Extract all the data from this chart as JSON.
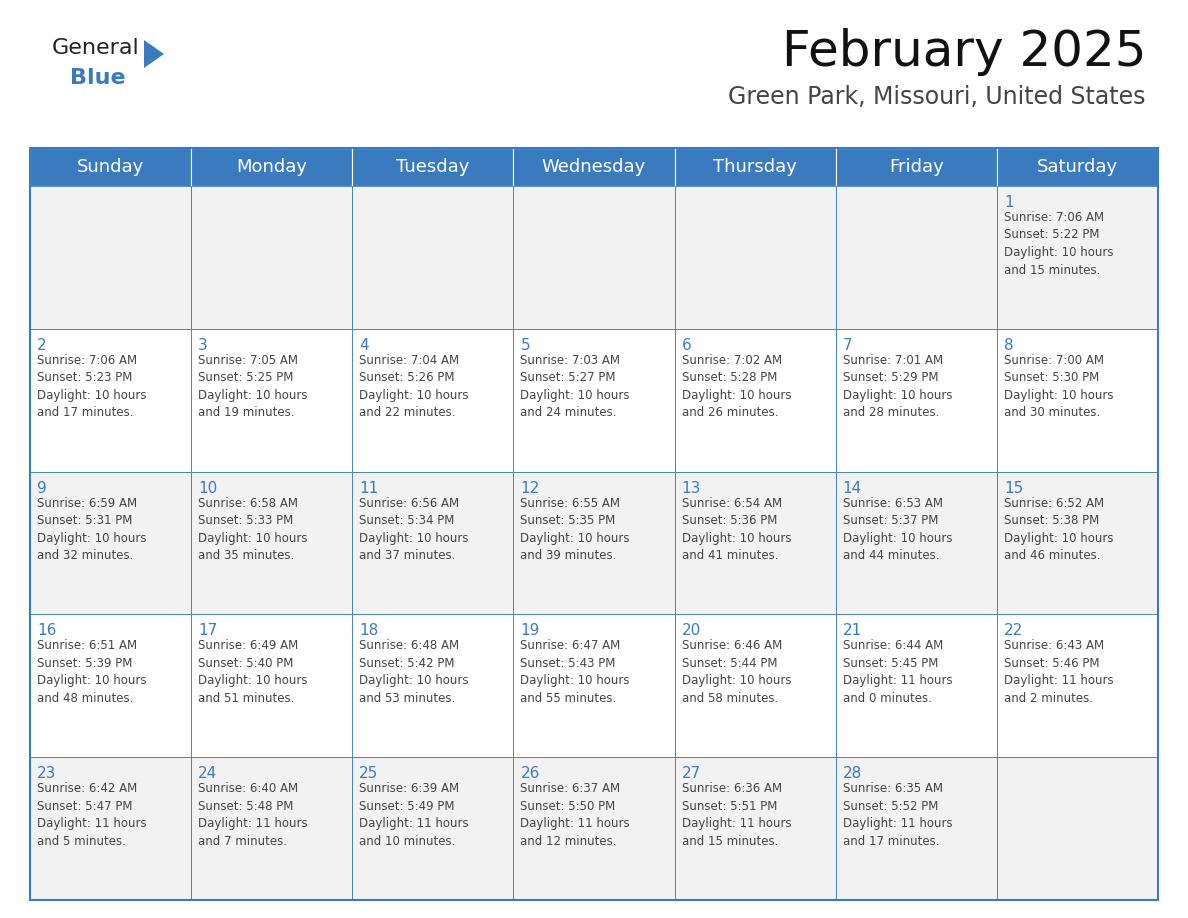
{
  "title": "February 2025",
  "subtitle": "Green Park, Missouri, United States",
  "header_color": "#3a7bbf",
  "header_text_color": "#ffffff",
  "cell_bg_even": "#f2f2f2",
  "cell_bg_odd": "#ffffff",
  "border_color": "#3a7bbf",
  "text_color": "#444444",
  "day_number_color": "#3a7bbf",
  "day_headers": [
    "Sunday",
    "Monday",
    "Tuesday",
    "Wednesday",
    "Thursday",
    "Friday",
    "Saturday"
  ],
  "weeks": [
    [
      {
        "day": "",
        "info": ""
      },
      {
        "day": "",
        "info": ""
      },
      {
        "day": "",
        "info": ""
      },
      {
        "day": "",
        "info": ""
      },
      {
        "day": "",
        "info": ""
      },
      {
        "day": "",
        "info": ""
      },
      {
        "day": "1",
        "info": "Sunrise: 7:06 AM\nSunset: 5:22 PM\nDaylight: 10 hours\nand 15 minutes."
      }
    ],
    [
      {
        "day": "2",
        "info": "Sunrise: 7:06 AM\nSunset: 5:23 PM\nDaylight: 10 hours\nand 17 minutes."
      },
      {
        "day": "3",
        "info": "Sunrise: 7:05 AM\nSunset: 5:25 PM\nDaylight: 10 hours\nand 19 minutes."
      },
      {
        "day": "4",
        "info": "Sunrise: 7:04 AM\nSunset: 5:26 PM\nDaylight: 10 hours\nand 22 minutes."
      },
      {
        "day": "5",
        "info": "Sunrise: 7:03 AM\nSunset: 5:27 PM\nDaylight: 10 hours\nand 24 minutes."
      },
      {
        "day": "6",
        "info": "Sunrise: 7:02 AM\nSunset: 5:28 PM\nDaylight: 10 hours\nand 26 minutes."
      },
      {
        "day": "7",
        "info": "Sunrise: 7:01 AM\nSunset: 5:29 PM\nDaylight: 10 hours\nand 28 minutes."
      },
      {
        "day": "8",
        "info": "Sunrise: 7:00 AM\nSunset: 5:30 PM\nDaylight: 10 hours\nand 30 minutes."
      }
    ],
    [
      {
        "day": "9",
        "info": "Sunrise: 6:59 AM\nSunset: 5:31 PM\nDaylight: 10 hours\nand 32 minutes."
      },
      {
        "day": "10",
        "info": "Sunrise: 6:58 AM\nSunset: 5:33 PM\nDaylight: 10 hours\nand 35 minutes."
      },
      {
        "day": "11",
        "info": "Sunrise: 6:56 AM\nSunset: 5:34 PM\nDaylight: 10 hours\nand 37 minutes."
      },
      {
        "day": "12",
        "info": "Sunrise: 6:55 AM\nSunset: 5:35 PM\nDaylight: 10 hours\nand 39 minutes."
      },
      {
        "day": "13",
        "info": "Sunrise: 6:54 AM\nSunset: 5:36 PM\nDaylight: 10 hours\nand 41 minutes."
      },
      {
        "day": "14",
        "info": "Sunrise: 6:53 AM\nSunset: 5:37 PM\nDaylight: 10 hours\nand 44 minutes."
      },
      {
        "day": "15",
        "info": "Sunrise: 6:52 AM\nSunset: 5:38 PM\nDaylight: 10 hours\nand 46 minutes."
      }
    ],
    [
      {
        "day": "16",
        "info": "Sunrise: 6:51 AM\nSunset: 5:39 PM\nDaylight: 10 hours\nand 48 minutes."
      },
      {
        "day": "17",
        "info": "Sunrise: 6:49 AM\nSunset: 5:40 PM\nDaylight: 10 hours\nand 51 minutes."
      },
      {
        "day": "18",
        "info": "Sunrise: 6:48 AM\nSunset: 5:42 PM\nDaylight: 10 hours\nand 53 minutes."
      },
      {
        "day": "19",
        "info": "Sunrise: 6:47 AM\nSunset: 5:43 PM\nDaylight: 10 hours\nand 55 minutes."
      },
      {
        "day": "20",
        "info": "Sunrise: 6:46 AM\nSunset: 5:44 PM\nDaylight: 10 hours\nand 58 minutes."
      },
      {
        "day": "21",
        "info": "Sunrise: 6:44 AM\nSunset: 5:45 PM\nDaylight: 11 hours\nand 0 minutes."
      },
      {
        "day": "22",
        "info": "Sunrise: 6:43 AM\nSunset: 5:46 PM\nDaylight: 11 hours\nand 2 minutes."
      }
    ],
    [
      {
        "day": "23",
        "info": "Sunrise: 6:42 AM\nSunset: 5:47 PM\nDaylight: 11 hours\nand 5 minutes."
      },
      {
        "day": "24",
        "info": "Sunrise: 6:40 AM\nSunset: 5:48 PM\nDaylight: 11 hours\nand 7 minutes."
      },
      {
        "day": "25",
        "info": "Sunrise: 6:39 AM\nSunset: 5:49 PM\nDaylight: 11 hours\nand 10 minutes."
      },
      {
        "day": "26",
        "info": "Sunrise: 6:37 AM\nSunset: 5:50 PM\nDaylight: 11 hours\nand 12 minutes."
      },
      {
        "day": "27",
        "info": "Sunrise: 6:36 AM\nSunset: 5:51 PM\nDaylight: 11 hours\nand 15 minutes."
      },
      {
        "day": "28",
        "info": "Sunrise: 6:35 AM\nSunset: 5:52 PM\nDaylight: 11 hours\nand 17 minutes."
      },
      {
        "day": "",
        "info": ""
      }
    ]
  ],
  "logo_general_color": "#222222",
  "logo_blue_color": "#3a7bbf",
  "logo_triangle_color": "#3a7bbf",
  "title_fontsize": 36,
  "subtitle_fontsize": 17,
  "header_fontsize": 13,
  "day_num_fontsize": 11,
  "info_fontsize": 8.5
}
